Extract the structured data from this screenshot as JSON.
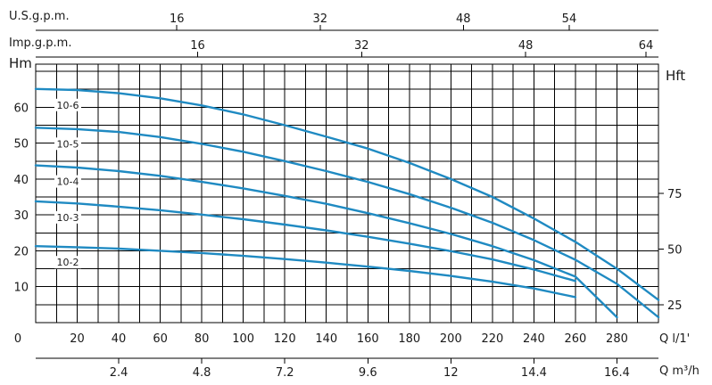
{
  "chart_data": {
    "type": "line",
    "grid": true,
    "xlim": [
      0,
      300
    ],
    "ylim": [
      0,
      72
    ],
    "x_axis": {
      "label": "Q l/1'",
      "ticks": [
        0,
        20,
        40,
        60,
        80,
        100,
        120,
        140,
        160,
        180,
        200,
        220,
        240,
        260,
        280
      ]
    },
    "y_axis": {
      "label": "Hm",
      "ticks": [
        10,
        20,
        30,
        40,
        50,
        60
      ]
    },
    "secondary_y_axis": {
      "label": "Hft",
      "ticks": [
        {
          "label": "25",
          "hm": 5
        },
        {
          "label": "50",
          "hm": 20.5
        },
        {
          "label": "75",
          "hm": 36
        }
      ]
    },
    "top_axes": [
      {
        "label": "U.S.g.p.m.",
        "ticks": [
          {
            "label": "16",
            "q": 68
          },
          {
            "label": "32",
            "q": 137
          },
          {
            "label": "48",
            "q": 206
          },
          {
            "label": "54",
            "q": 257
          }
        ]
      },
      {
        "label": "Imp.g.p.m.",
        "ticks": [
          {
            "label": "16",
            "q": 78
          },
          {
            "label": "32",
            "q": 157
          },
          {
            "label": "48",
            "q": 236
          },
          {
            "label": "64",
            "q": 294
          }
        ]
      }
    ],
    "bottom_axis": {
      "label": "Q m³/h",
      "ticks": [
        {
          "label": "2.4",
          "q": 40
        },
        {
          "label": "4.8",
          "q": 80
        },
        {
          "label": "7.2",
          "q": 120
        },
        {
          "label": "9.6",
          "q": 160
        },
        {
          "label": "12",
          "q": 200
        },
        {
          "label": "14.4",
          "q": 240
        },
        {
          "label": "16.4",
          "q": 280
        }
      ]
    },
    "series": [
      {
        "name": "10-6",
        "x": [
          0,
          20,
          40,
          60,
          80,
          100,
          120,
          140,
          160,
          180,
          200,
          220,
          240,
          260,
          280,
          300
        ],
        "y": [
          65.1,
          64.8,
          63.9,
          62.5,
          60.5,
          58,
          55,
          51.8,
          48.5,
          44.5,
          40,
          35,
          29,
          22.5,
          15,
          6.3
        ]
      },
      {
        "name": "10-5",
        "x": [
          0,
          20,
          40,
          60,
          80,
          100,
          120,
          140,
          160,
          180,
          200,
          220,
          240,
          260,
          280,
          300
        ],
        "y": [
          54.3,
          53.9,
          53.1,
          51.7,
          49.8,
          47.6,
          45,
          42.2,
          39.2,
          35.8,
          32,
          27.8,
          23,
          17.5,
          10.8,
          1.5
        ]
      },
      {
        "name": "10-4",
        "x": [
          0,
          20,
          40,
          60,
          80,
          100,
          120,
          140,
          160,
          180,
          200,
          220,
          240,
          260,
          280
        ],
        "y": [
          43.8,
          43.2,
          42.2,
          40.9,
          39.2,
          37.4,
          35.3,
          33.1,
          30.5,
          27.7,
          24.7,
          21.3,
          17.4,
          12.8,
          1.5
        ]
      },
      {
        "name": "10-3",
        "x": [
          0,
          20,
          40,
          60,
          80,
          100,
          120,
          140,
          160,
          180,
          200,
          220,
          240,
          260
        ],
        "y": [
          33.8,
          33.2,
          32.3,
          31.3,
          30.1,
          28.8,
          27.3,
          25.7,
          23.9,
          22,
          19.9,
          17.6,
          14.8,
          11.6
        ]
      },
      {
        "name": "10-2",
        "x": [
          0,
          20,
          40,
          60,
          80,
          100,
          120,
          140,
          160,
          180,
          200,
          220,
          240,
          260
        ],
        "y": [
          21.3,
          21,
          20.6,
          20,
          19.4,
          18.6,
          17.7,
          16.7,
          15.6,
          14.4,
          13,
          11.4,
          9.5,
          7.1
        ]
      }
    ]
  }
}
